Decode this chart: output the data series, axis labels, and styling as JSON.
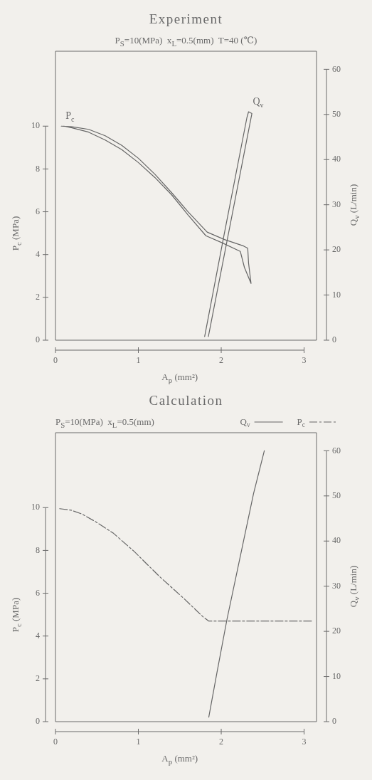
{
  "chart_data": [
    {
      "type": "line",
      "title": "Experiment",
      "subtitle": "P$_{S}$=10(MPa)  x$_{L}$=0.5(mm)  T=40 (℃)",
      "xlabel": "A$_{p}$ (mm²)",
      "ylabel": "P$_{c}$ (MPa)",
      "y2label": "Q$_{v}$ (L/min)",
      "xlim": [
        0,
        3.15
      ],
      "xticks": [
        0,
        1,
        2,
        3
      ],
      "ylim": [
        0,
        13.5
      ],
      "yticks": [
        0,
        2,
        4,
        6,
        8,
        10
      ],
      "y2lim": [
        0,
        64
      ],
      "y2ticks": [
        0,
        10,
        20,
        30,
        40,
        50,
        60
      ],
      "series": [
        {
          "name": "P$_{c}$",
          "color": "#666666",
          "x": [
            0.07,
            0.2,
            0.4,
            0.6,
            0.8,
            1.0,
            1.2,
            1.4,
            1.6,
            1.83,
            2.04,
            2.27,
            2.32,
            2.33,
            2.36,
            2.28,
            2.23,
            2.01,
            1.815,
            1.6,
            1.4,
            1.2,
            1.0,
            0.8,
            0.6,
            0.4,
            0.2,
            0.1
          ],
          "values": [
            10.0,
            9.97,
            9.85,
            9.55,
            9.1,
            8.5,
            7.75,
            6.9,
            6.0,
            5.05,
            4.7,
            4.4,
            4.3,
            3.6,
            2.65,
            3.4,
            4.15,
            4.55,
            4.88,
            5.85,
            6.8,
            7.6,
            8.3,
            8.9,
            9.35,
            9.72,
            9.92,
            10.0
          ]
        },
        {
          "name": "Q$_{v}$",
          "color": "#666666",
          "axis": "y2",
          "x": [
            1.8,
            2.03,
            2.31,
            2.33,
            2.37,
            2.08,
            1.845
          ],
          "values": [
            0.8,
            22.9,
            49.3,
            50.6,
            50.2,
            22.9,
            0.8
          ]
        }
      ]
    },
    {
      "type": "line",
      "title": "Calculation",
      "subtitle": "P$_{S}$=10(MPa)  x$_{L}$=0.5(mm)",
      "xlabel": "A$_{p}$ (mm²)",
      "ylabel": "P$_{c}$ (MPa)",
      "y2label": "Q$_{v}$ (L/min)",
      "xlim": [
        0,
        3.15
      ],
      "xticks": [
        0,
        1,
        2,
        3
      ],
      "ylim": [
        0,
        13.5
      ],
      "yticks": [
        0,
        2,
        4,
        6,
        8,
        10
      ],
      "y2lim": [
        0,
        64
      ],
      "y2ticks": [
        0,
        10,
        20,
        30,
        40,
        50,
        60
      ],
      "legend": "top right",
      "series": [
        {
          "name": "Q$_{v}$",
          "color": "#666666",
          "axis": "y2",
          "x": [
            1.85,
            1.95,
            2.07,
            2.2,
            2.39,
            2.52
          ],
          "values": [
            1,
            11,
            22.7,
            34,
            50.5,
            60
          ]
        },
        {
          "name": "P$_{c}$",
          "color": "#666666",
          "line_style": "dashed",
          "x": [
            0.05,
            0.19,
            0.32,
            0.48,
            0.7,
            0.95,
            1.25,
            1.55,
            1.78,
            1.85,
            3.09
          ],
          "values": [
            9.95,
            9.88,
            9.7,
            9.35,
            8.8,
            7.95,
            6.8,
            5.75,
            4.9,
            4.7,
            4.7
          ]
        }
      ]
    }
  ]
}
